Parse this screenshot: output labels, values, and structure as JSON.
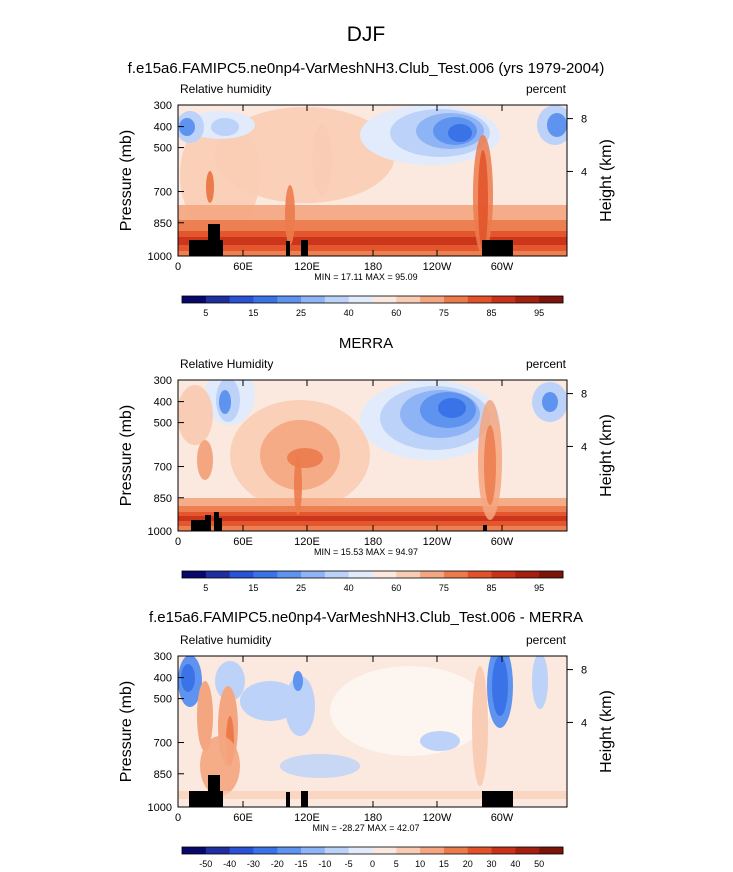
{
  "figure": {
    "main_title": "DJF"
  },
  "chart_data": [
    {
      "type": "heatmap",
      "title": "f.e15a6.FAMIPC5.ne0np4-VarMeshNH3.Club_Test.006 (yrs 1979-2004)",
      "left_label": "Relative humidity",
      "right_label": "percent",
      "ylabel": "Pressure (mb)",
      "y2label": "Height (km)",
      "x_ticks": [
        "0",
        "60E",
        "120E",
        "180",
        "120W",
        "60W"
      ],
      "y_ticks": [
        "300",
        "400",
        "500",
        "700",
        "850",
        "1000"
      ],
      "y2_ticks": [
        "8",
        "4"
      ],
      "stats": "MIN = 17.11  MAX = 95.09",
      "colorbar": {
        "labels": [
          "5",
          "15",
          "25",
          "40",
          "60",
          "75",
          "85",
          "95"
        ],
        "colors": [
          "#08086b",
          "#1f2fa0",
          "#2a52d6",
          "#3a73e8",
          "#5f93f0",
          "#8fb4f5",
          "#bcd2f8",
          "#e2ebfb",
          "#fbe8de",
          "#f9cdb5",
          "#f4a680",
          "#ec7b4c",
          "#e2522a",
          "#c8321a",
          "#a3200f",
          "#7d1409"
        ]
      }
    },
    {
      "type": "heatmap",
      "title": "MERRA",
      "left_label": "Relative Humidity",
      "right_label": "percent",
      "ylabel": "Pressure (mb)",
      "y2label": "Height (km)",
      "x_ticks": [
        "0",
        "60E",
        "120E",
        "180",
        "120W",
        "60W"
      ],
      "y_ticks": [
        "300",
        "400",
        "500",
        "700",
        "850",
        "1000"
      ],
      "y2_ticks": [
        "8",
        "4"
      ],
      "stats": "MIN = 15.53  MAX = 94.97",
      "colorbar": {
        "labels": [
          "5",
          "15",
          "25",
          "40",
          "60",
          "75",
          "85",
          "95"
        ],
        "colors": [
          "#08086b",
          "#1f2fa0",
          "#2a52d6",
          "#3a73e8",
          "#5f93f0",
          "#8fb4f5",
          "#bcd2f8",
          "#e2ebfb",
          "#fbe8de",
          "#f9cdb5",
          "#f4a680",
          "#ec7b4c",
          "#e2522a",
          "#c8321a",
          "#a3200f",
          "#7d1409"
        ]
      }
    },
    {
      "type": "heatmap",
      "title": "f.e15a6.FAMIPC5.ne0np4-VarMeshNH3.Club_Test.006 - MERRA",
      "left_label": "Relative humidity",
      "right_label": "percent",
      "ylabel": "Pressure (mb)",
      "y2label": "Height (km)",
      "x_ticks": [
        "0",
        "60E",
        "120E",
        "180",
        "120W",
        "60W"
      ],
      "y_ticks": [
        "300",
        "400",
        "500",
        "700",
        "850",
        "1000"
      ],
      "y2_ticks": [
        "8",
        "4"
      ],
      "stats": "MIN = -28.27  MAX = 42.07",
      "colorbar": {
        "labels": [
          "-50",
          "-40",
          "-30",
          "-20",
          "-15",
          "-10",
          "-5",
          "0",
          "5",
          "10",
          "15",
          "20",
          "30",
          "40",
          "50"
        ],
        "colors": [
          "#08086b",
          "#1f2fa0",
          "#2a52d6",
          "#3a73e8",
          "#5f93f0",
          "#8fb4f5",
          "#bcd2f8",
          "#e2ebfb",
          "#fbe8de",
          "#f9cdb5",
          "#f4a680",
          "#ec7b4c",
          "#e2522a",
          "#c8321a",
          "#a3200f",
          "#7d1409"
        ]
      }
    }
  ]
}
